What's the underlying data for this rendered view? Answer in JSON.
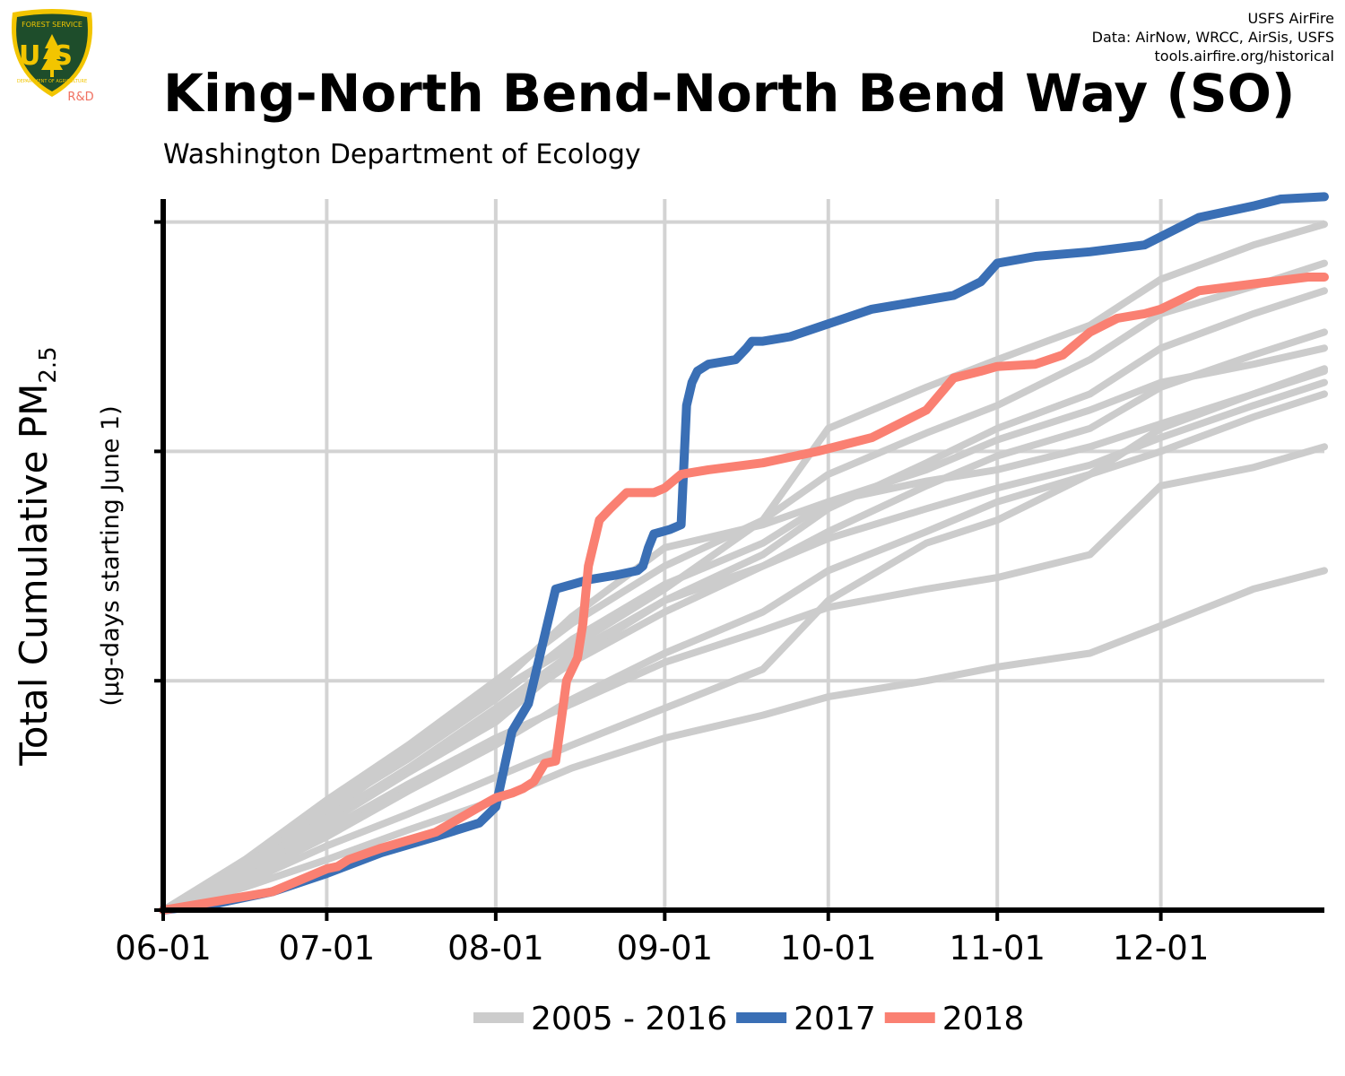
{
  "header": {
    "logo_agency": "FOREST SERVICE",
    "logo_letters": "US",
    "logo_department": "DEPARTMENT OF AGRICULTURE",
    "logo_rd": "R&D",
    "credit_lines": [
      "USFS AirFire",
      "Data: AirNow, WRCC, AirSis, USFS",
      "tools.airfire.org/historical"
    ],
    "title": "King-North Bend-North Bend Way (SO)",
    "subtitle": "Washington Department of Ecology"
  },
  "colors": {
    "history": "#cccccc",
    "year_2017": "#3a6fb5",
    "year_2018": "#fa8072",
    "logo_green": "#1e4d2b",
    "logo_gold": "#f2c500",
    "rd_text": "#f07060"
  },
  "chart_data": {
    "type": "line",
    "ylabel": "Total Cumulative PM",
    "ylabel_subscript": "2.5",
    "ylabel_units": "(µg-days starting June 1)",
    "x_tick_labels": [
      "06-01",
      "07-01",
      "08-01",
      "09-01",
      "10-01",
      "11-01",
      "12-01"
    ],
    "x_tick_days": [
      0,
      30,
      61,
      92,
      122,
      153,
      183
    ],
    "xlim": [
      0,
      213
    ],
    "ylim": [
      0,
      310
    ],
    "y_gridlines": [
      100,
      200,
      300
    ],
    "y_tick_labels_shown": false,
    "grid": true,
    "legend_position": "bottom",
    "legend": [
      {
        "label": "2005 - 2016",
        "color": "#cccccc"
      },
      {
        "label": "2017",
        "color": "#3a6fb5"
      },
      {
        "label": "2018",
        "color": "#fa8072"
      }
    ],
    "series": [
      {
        "name": "2005 - 2016",
        "group": "history",
        "x": [
          0,
          15,
          30,
          45,
          61,
          75,
          92,
          110,
          122,
          140,
          153,
          170,
          183,
          200,
          213
        ],
        "y": [
          0,
          18,
          42,
          68,
          97,
          128,
          158,
          168,
          178,
          187,
          192,
          202,
          212,
          225,
          236
        ]
      },
      {
        "name": "2005 - 2016",
        "group": "history",
        "x": [
          0,
          15,
          30,
          45,
          61,
          75,
          92,
          110,
          122,
          140,
          153,
          170,
          183,
          200,
          213
        ],
        "y": [
          0,
          15,
          35,
          55,
          75,
          90,
          108,
          122,
          132,
          140,
          145,
          155,
          185,
          193,
          202
        ]
      },
      {
        "name": "2005 - 2016",
        "group": "history",
        "x": [
          0,
          15,
          30,
          45,
          61,
          75,
          92,
          110,
          122,
          140,
          153,
          170,
          183,
          200,
          213
        ],
        "y": [
          0,
          20,
          45,
          70,
          95,
          115,
          140,
          170,
          210,
          228,
          240,
          255,
          275,
          290,
          299
        ]
      },
      {
        "name": "2005 - 2016",
        "group": "history",
        "x": [
          0,
          15,
          30,
          45,
          61,
          75,
          92,
          110,
          122,
          140,
          153,
          170,
          183,
          200,
          213
        ],
        "y": [
          0,
          22,
          48,
          72,
          100,
          125,
          150,
          170,
          190,
          208,
          220,
          240,
          260,
          272,
          282
        ]
      },
      {
        "name": "2005 - 2016",
        "group": "history",
        "x": [
          0,
          15,
          30,
          45,
          61,
          75,
          92,
          110,
          122,
          140,
          153,
          170,
          183,
          200,
          213
        ],
        "y": [
          0,
          12,
          28,
          42,
          58,
          72,
          88,
          105,
          135,
          160,
          170,
          190,
          210,
          225,
          235
        ]
      },
      {
        "name": "2005 - 2016",
        "group": "history",
        "x": [
          0,
          15,
          30,
          45,
          61,
          75,
          92,
          110,
          122,
          140,
          153,
          170,
          183,
          200,
          213
        ],
        "y": [
          0,
          16,
          38,
          60,
          82,
          110,
          135,
          155,
          175,
          195,
          210,
          225,
          245,
          260,
          270
        ]
      },
      {
        "name": "2005 - 2016",
        "group": "history",
        "x": [
          0,
          15,
          30,
          45,
          61,
          75,
          92,
          110,
          122,
          140,
          153,
          170,
          183,
          200,
          213
        ],
        "y": [
          0,
          17,
          40,
          62,
          85,
          108,
          130,
          150,
          165,
          185,
          198,
          210,
          228,
          242,
          252
        ]
      },
      {
        "name": "2005 - 2016",
        "group": "history",
        "x": [
          0,
          15,
          30,
          45,
          61,
          75,
          92,
          110,
          122,
          140,
          153,
          170,
          183,
          200,
          213
        ],
        "y": [
          0,
          19,
          44,
          66,
          92,
          118,
          142,
          160,
          178,
          192,
          205,
          218,
          230,
          238,
          245
        ]
      },
      {
        "name": "2005 - 2016",
        "group": "history",
        "x": [
          0,
          15,
          30,
          45,
          61,
          75,
          92,
          110,
          122,
          140,
          153,
          170,
          183,
          200,
          213
        ],
        "y": [
          0,
          14,
          32,
          52,
          72,
          92,
          112,
          130,
          148,
          165,
          178,
          190,
          200,
          215,
          225
        ]
      },
      {
        "name": "2005 - 2016",
        "group": "history",
        "x": [
          0,
          15,
          30,
          45,
          61,
          75,
          92,
          110,
          122,
          140,
          153,
          170,
          183,
          200,
          213
        ],
        "y": [
          0,
          10,
          22,
          35,
          48,
          62,
          75,
          85,
          93,
          100,
          106,
          112,
          124,
          140,
          148
        ]
      },
      {
        "name": "2005 - 2016",
        "group": "history",
        "x": [
          0,
          15,
          30,
          45,
          61,
          75,
          92,
          110,
          122,
          140,
          153,
          170,
          183,
          200,
          213
        ],
        "y": [
          0,
          18,
          40,
          62,
          88,
          112,
          135,
          150,
          162,
          175,
          184,
          194,
          206,
          220,
          230
        ]
      },
      {
        "name": "2017",
        "group": "2017",
        "x": [
          0,
          10,
          20,
          30,
          40,
          50,
          58,
          61,
          64,
          67,
          69,
          72,
          75,
          78,
          83,
          87,
          88,
          89,
          90,
          93,
          95,
          96,
          97,
          98,
          100,
          105,
          107,
          108,
          110,
          115,
          120,
          130,
          140,
          145,
          150,
          153,
          160,
          170,
          180,
          185,
          190,
          200,
          205,
          213
        ],
        "y": [
          0,
          3,
          8,
          16,
          25,
          32,
          38,
          45,
          78,
          90,
          110,
          140,
          142,
          144,
          146,
          148,
          150,
          158,
          164,
          166,
          168,
          220,
          230,
          235,
          238,
          240,
          245,
          248,
          248,
          250,
          254,
          262,
          266,
          268,
          274,
          282,
          285,
          287,
          290,
          296,
          302,
          307,
          310,
          311
        ]
      },
      {
        "name": "2018",
        "group": "2018",
        "x": [
          0,
          10,
          20,
          30,
          32,
          34,
          40,
          50,
          58,
          61,
          64,
          66,
          68,
          70,
          72,
          74,
          75,
          76,
          77,
          78,
          80,
          82,
          85,
          88,
          90,
          92,
          95,
          100,
          110,
          120,
          130,
          140,
          145,
          150,
          153,
          160,
          165,
          170,
          175,
          180,
          183,
          190,
          200,
          210,
          213
        ],
        "y": [
          0,
          4,
          8,
          18,
          19,
          22,
          27,
          34,
          45,
          49,
          51,
          53,
          56,
          64,
          65,
          100,
          105,
          110,
          125,
          150,
          170,
          175,
          182,
          182,
          182,
          184,
          190,
          192,
          195,
          200,
          206,
          218,
          232,
          235,
          237,
          238,
          242,
          252,
          258,
          260,
          262,
          270,
          273,
          276,
          276
        ]
      }
    ]
  }
}
